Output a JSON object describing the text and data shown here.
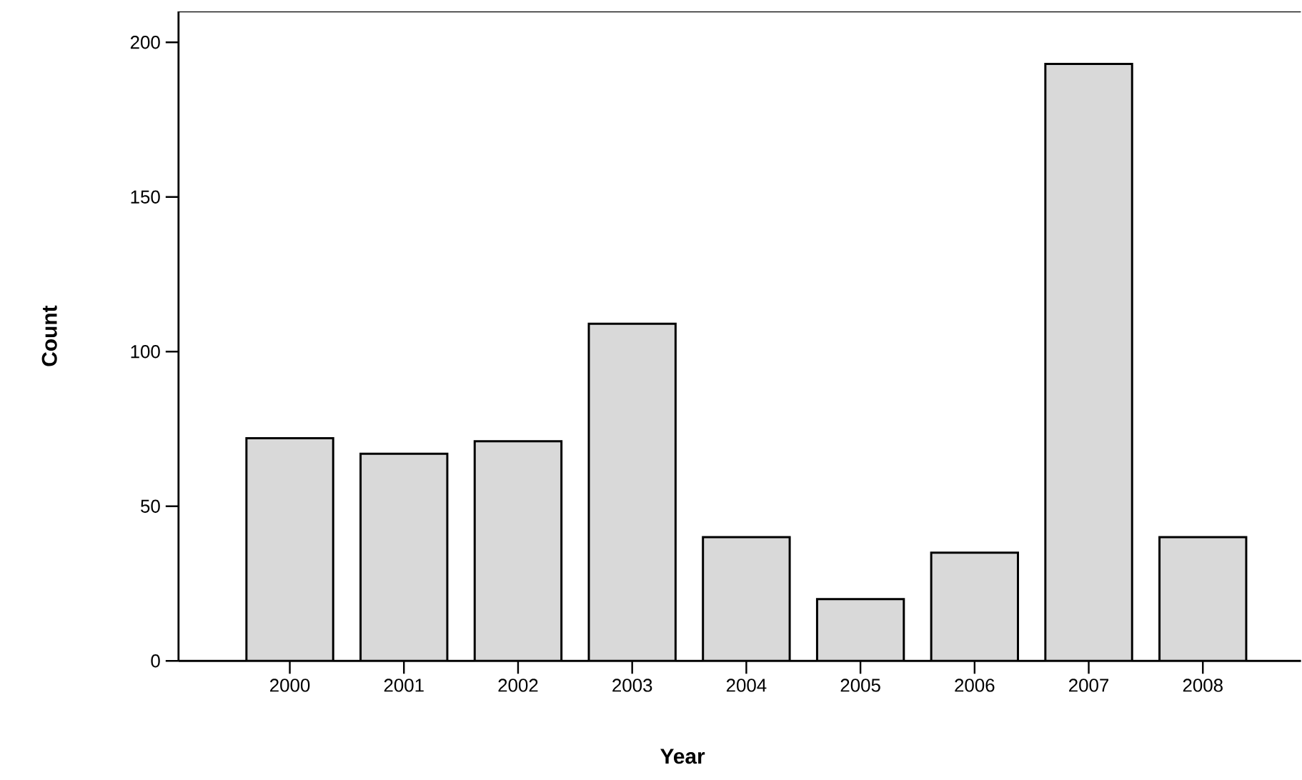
{
  "chart_data": {
    "type": "bar",
    "xlabel": "Year",
    "ylabel": "Count",
    "categories": [
      "2000",
      "2001",
      "2002",
      "2003",
      "2004",
      "2005",
      "2006",
      "2007",
      "2008"
    ],
    "values": [
      72,
      67,
      71,
      109,
      40,
      20,
      35,
      193,
      40
    ],
    "color": "#d9d9d9",
    "ylim": [
      0,
      210
    ],
    "yticks": [
      0,
      50,
      100,
      150,
      200
    ],
    "grid": false
  }
}
